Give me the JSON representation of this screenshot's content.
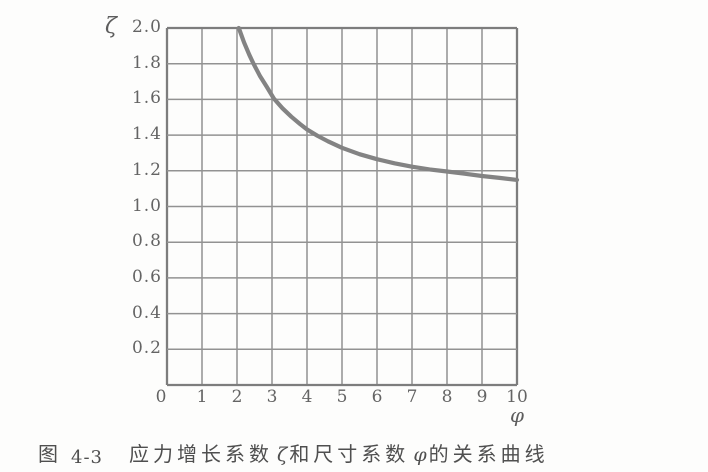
{
  "figure": {
    "y_axis_symbol": "ζ",
    "x_axis_symbol": "φ",
    "caption": {
      "fig_word": "图",
      "fig_number": "4-3",
      "title_1": "应力增长系数",
      "zeta": "ζ",
      "title_2": "和尺寸系数",
      "phi": "φ",
      "title_3": "的关系曲线",
      "full": "图 4-3 应力增长系数 ζ和尺寸系数 φ的关系曲线"
    }
  },
  "chart_data": {
    "type": "line",
    "title": "图 4-3 应力增长系数 ζ和尺寸系数 φ的关系曲线",
    "xlabel": "φ",
    "ylabel": "ζ",
    "xlim": [
      0,
      10
    ],
    "ylim": [
      0,
      2.0
    ],
    "y_step": 0.2,
    "grid": true,
    "x_ticks": [
      0,
      1,
      2,
      3,
      4,
      5,
      6,
      7,
      8,
      9,
      10
    ],
    "y_tick_labels": [
      "2.0",
      "1.8",
      "1.6",
      "1.4",
      "1.2",
      "1.0",
      "0.8",
      "0.6",
      "0.4",
      "0.2"
    ],
    "series": [
      {
        "name": "ζ–φ relation curve",
        "points": [
          [
            2.05,
            2.0
          ],
          [
            2.2,
            1.92
          ],
          [
            2.35,
            1.85
          ],
          [
            2.47,
            1.8
          ],
          [
            2.65,
            1.733
          ],
          [
            2.85,
            1.67
          ],
          [
            3.05,
            1.605
          ],
          [
            3.3,
            1.55
          ],
          [
            3.55,
            1.503
          ],
          [
            3.8,
            1.462
          ],
          [
            4.0,
            1.432
          ],
          [
            4.3,
            1.396
          ],
          [
            4.6,
            1.365
          ],
          [
            5.0,
            1.329
          ],
          [
            5.5,
            1.293
          ],
          [
            6.0,
            1.265
          ],
          [
            6.5,
            1.242
          ],
          [
            7.0,
            1.223
          ],
          [
            7.5,
            1.208
          ],
          [
            8.0,
            1.196
          ],
          [
            8.5,
            1.184
          ],
          [
            9.0,
            1.171
          ],
          [
            9.5,
            1.16
          ],
          [
            10.0,
            1.149
          ]
        ]
      }
    ],
    "colors": {
      "background": "#fdfdfc",
      "grid_line": "#929292",
      "grid_border": "#7d7d7d",
      "curve": "#838383",
      "tick_text": "#646464",
      "caption_text": "#4f4f4f"
    }
  }
}
